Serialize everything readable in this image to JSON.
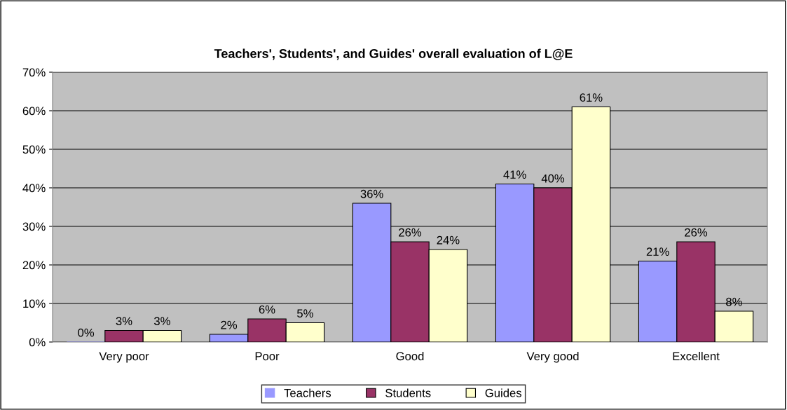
{
  "chart_data": {
    "type": "bar",
    "title": "Teachers', Students', and Guides' overall evaluation of L@E",
    "categories": [
      "Very poor",
      "Poor",
      "Good",
      "Very good",
      "Excellent"
    ],
    "series": [
      {
        "name": "Teachers",
        "color": "#9999ff",
        "values": [
          0,
          2,
          36,
          41,
          21
        ],
        "value_labels": [
          "0%",
          "2%",
          "36%",
          "41%",
          "21%"
        ]
      },
      {
        "name": "Students",
        "color": "#993366",
        "values": [
          3,
          6,
          26,
          40,
          26
        ],
        "value_labels": [
          "3%",
          "6%",
          "26%",
          "40%",
          "26%"
        ]
      },
      {
        "name": "Guides",
        "color": "#ffffcc",
        "values": [
          3,
          5,
          24,
          61,
          8
        ],
        "value_labels": [
          "3%",
          "5%",
          "24%",
          "61%",
          "8%"
        ]
      }
    ],
    "ylim": [
      0,
      70
    ],
    "yticks": [
      {
        "value": 0,
        "label": "0%"
      },
      {
        "value": 10,
        "label": "10%"
      },
      {
        "value": 20,
        "label": "20%"
      },
      {
        "value": 30,
        "label": "30%"
      },
      {
        "value": 40,
        "label": "40%"
      },
      {
        "value": 50,
        "label": "50%"
      },
      {
        "value": 60,
        "label": "60%"
      },
      {
        "value": 70,
        "label": "70%"
      }
    ],
    "grid": "y",
    "legend": "bottom"
  }
}
